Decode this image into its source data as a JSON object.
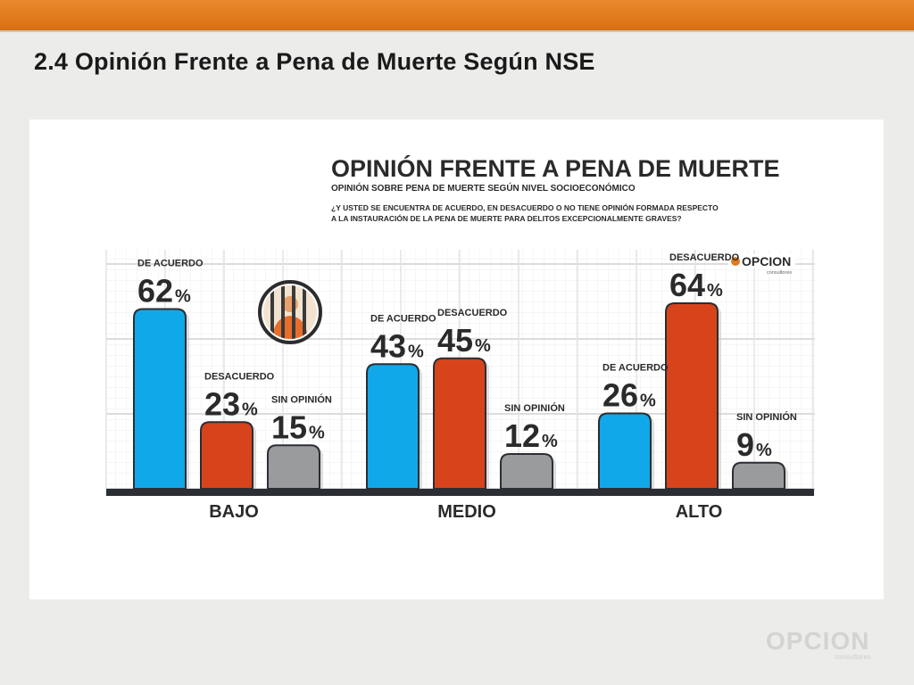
{
  "slide": {
    "title": "2.4 Opinión Frente a Pena de Muerte Según NSE"
  },
  "infographic": {
    "heading": "OPINIÓN FRENTE A PENA DE MUERTE",
    "subheading": "OPINIÓN SOBRE PENA DE MUERTE SEGÚN NIVEL SOCIOECONÓMICO",
    "question_line1": "¿Y USTED SE ENCUENTRA DE ACUERDO, EN DESACUERDO O NO TIENE OPINIÓN FORMADA RESPECTO",
    "question_line2": "A LA INSTAURACIÓN DE LA PENA DE MUERTE PARA DELITOS EXCEPCIONALMENTE GRAVES?",
    "jail-icon": "jail-icon",
    "logo_text": "OPCION",
    "logo_sub": "consultores"
  },
  "footer": {
    "logo_text": "OPCION",
    "logo_sub": "consultores"
  },
  "chart_data": {
    "type": "bar",
    "title": "OPINIÓN FRENTE A PENA DE MUERTE",
    "categories": [
      "BAJO",
      "MEDIO",
      "ALTO"
    ],
    "series": [
      {
        "name": "DE ACUERDO",
        "values": [
          62,
          43,
          26
        ],
        "color": "#10a8e8"
      },
      {
        "name": "DESACUERDO",
        "values": [
          23,
          45,
          64
        ],
        "color": "#d7441b"
      },
      {
        "name": "SIN OPINIÓN",
        "values": [
          15,
          12,
          9
        ],
        "color": "#9a9b9d"
      }
    ],
    "unit": "%",
    "ylim": [
      0,
      70
    ],
    "grid": true,
    "legend": "none"
  }
}
